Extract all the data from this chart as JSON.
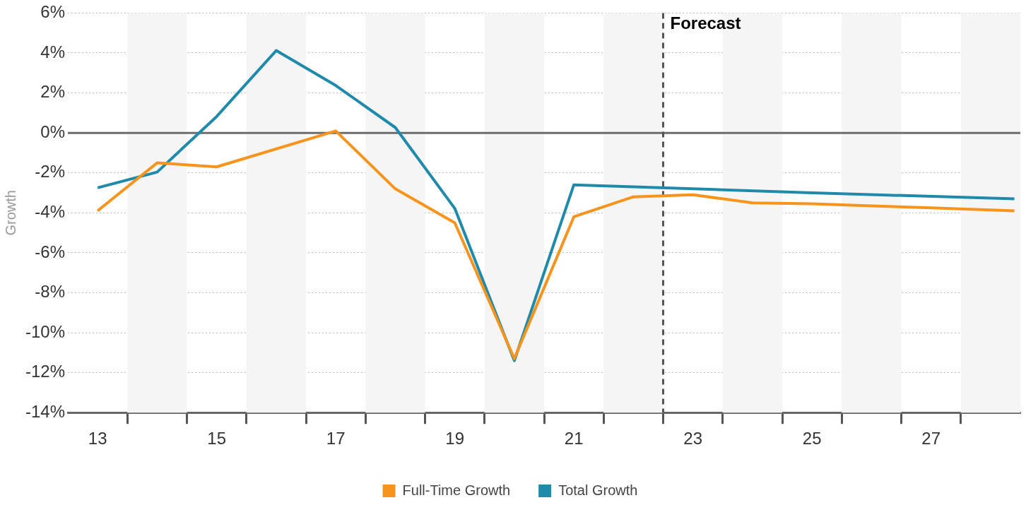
{
  "chart_data": {
    "type": "line",
    "ylabel": "Growth",
    "xlim": [
      12.5,
      28.5
    ],
    "xticks": [
      13,
      {
        "value": 13.5,
        "label": null
      },
      {
        "value": 14.5,
        "label": null
      },
      15,
      {
        "value": 15.5,
        "label": null
      },
      {
        "value": 16.5,
        "label": null
      },
      17,
      {
        "value": 17.5,
        "label": null
      },
      {
        "value": 18.5,
        "label": null
      },
      19,
      {
        "value": 19.5,
        "label": null
      },
      {
        "value": 20.5,
        "label": null
      },
      21,
      {
        "value": 21.5,
        "label": null
      },
      {
        "value": 22.5,
        "label": null
      },
      23,
      {
        "value": 23.5,
        "label": null
      },
      {
        "value": 24.5,
        "label": null
      },
      25,
      {
        "value": 25.5,
        "label": null
      },
      {
        "value": 26.5,
        "label": null
      },
      27,
      {
        "value": 27.5,
        "label": null
      }
    ],
    "ylim": [
      -14,
      6
    ],
    "yticks": [
      {
        "value": -14,
        "label": "-14%"
      },
      {
        "value": -12,
        "label": "-12%"
      },
      {
        "value": -10,
        "label": "-10%"
      },
      {
        "value": -8,
        "label": "-8%"
      },
      {
        "value": -6,
        "label": "-6%"
      },
      {
        "value": -4,
        "label": "-4%"
      },
      {
        "value": -2,
        "label": "-2%"
      },
      {
        "value": 0,
        "label": "0%"
      },
      {
        "value": 2,
        "label": "2%"
      },
      {
        "value": 4,
        "label": "4%"
      },
      {
        "value": 6,
        "label": "6%"
      }
    ],
    "series": [
      {
        "name": "Full-Time Growth",
        "color": "#f7941d",
        "x": [
          13,
          14,
          15,
          17,
          18,
          19,
          20,
          21,
          22,
          23,
          24,
          25,
          26,
          27,
          28.4
        ],
        "values": [
          -3.9,
          -1.5,
          -1.7,
          0.1,
          -2.8,
          -4.5,
          -11.3,
          -4.2,
          -3.2,
          -3.1,
          -3.5,
          -3.55,
          -3.65,
          -3.75,
          -3.9
        ]
      },
      {
        "name": "Total Growth",
        "color": "#1f8aaa",
        "x": [
          13,
          14,
          15,
          16,
          17,
          18,
          19,
          20,
          21,
          23,
          25,
          28.4
        ],
        "values": [
          -2.75,
          -1.96,
          0.82,
          4.12,
          2.37,
          0.27,
          -3.78,
          -11.4,
          -2.6,
          -2.8,
          -3.0,
          -3.3
        ]
      }
    ],
    "ref_lines": [
      {
        "axis": "y",
        "value": 0,
        "color": "#6d6d6d",
        "line_style": "solid"
      },
      {
        "axis": "x",
        "value": 22.5,
        "label": "Forecast",
        "color": "#555555",
        "line_style": "dashed"
      }
    ],
    "bands": [
      {
        "axis": "x",
        "from": 13.5,
        "to": 14.5,
        "color": "#f5f5f5"
      },
      {
        "axis": "x",
        "from": 15.5,
        "to": 16.5,
        "color": "#f5f5f5"
      },
      {
        "axis": "x",
        "from": 17.5,
        "to": 18.5,
        "color": "#f5f5f5"
      },
      {
        "axis": "x",
        "from": 19.5,
        "to": 20.5,
        "color": "#f5f5f5"
      },
      {
        "axis": "x",
        "from": 21.5,
        "to": 22.5,
        "color": "#f5f5f5"
      },
      {
        "axis": "x",
        "from": 23.5,
        "to": 24.5,
        "color": "#f5f5f5"
      },
      {
        "axis": "x",
        "from": 25.5,
        "to": 26.5,
        "color": "#f5f5f5"
      },
      {
        "axis": "x",
        "from": 27.5,
        "to": 28.5,
        "color": "#f5f5f5"
      }
    ],
    "grid": "y",
    "legend": "bottom",
    "marker": "none",
    "line_style": "solid"
  }
}
